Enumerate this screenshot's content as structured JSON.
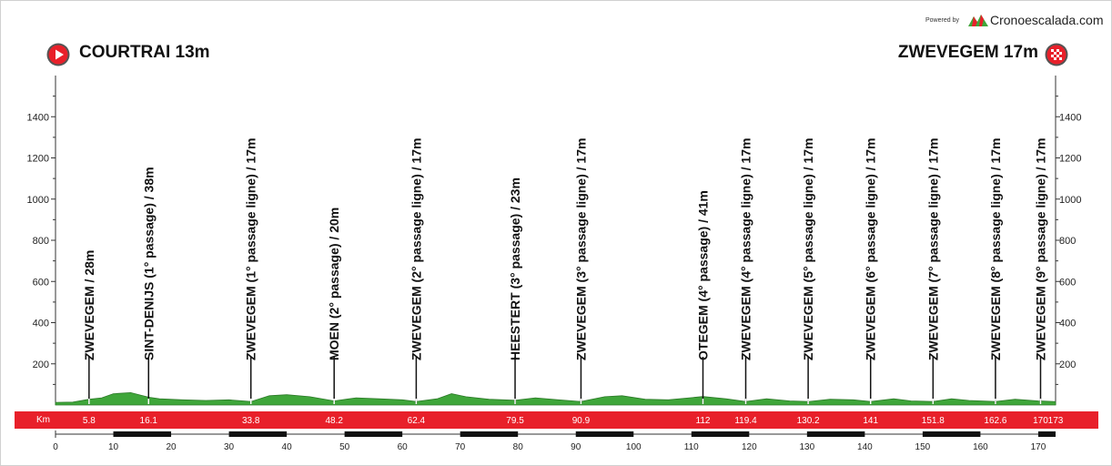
{
  "header": {
    "powered_by": "Powered by",
    "brand": "Cronoescalada.com",
    "start_label": "COURTRAI 13m",
    "end_label": "ZWEVEGEM 17m",
    "start_icon": "play-icon",
    "end_icon": "checkered-flag-icon"
  },
  "km_label": "Km",
  "colors": {
    "terrain": "#3fa63a",
    "km_bar": "#e8202a",
    "axis": "#333333"
  },
  "chart_data": {
    "type": "area",
    "title": "",
    "xlabel": "",
    "ylabel": "",
    "xlim": [
      0,
      173
    ],
    "ylim": [
      0,
      1600
    ],
    "y_ticks": [
      200,
      400,
      600,
      800,
      1000,
      1200,
      1400
    ],
    "x_ticks": [
      0,
      10,
      20,
      30,
      40,
      50,
      60,
      70,
      80,
      90,
      100,
      110,
      120,
      130,
      140,
      150,
      160,
      170
    ],
    "x": [
      0,
      3,
      5.8,
      8,
      10,
      13,
      16.1,
      18,
      22,
      26,
      30,
      33.8,
      37,
      40,
      44,
      48.2,
      52,
      56,
      60,
      62.4,
      66,
      68.5,
      71,
      75,
      79.5,
      83,
      87,
      90.9,
      95,
      98,
      102,
      106,
      112,
      116,
      119.4,
      123,
      127,
      130.2,
      134,
      138,
      141,
      145,
      148,
      151.8,
      155,
      158,
      162.6,
      166,
      170,
      173
    ],
    "y": [
      13,
      14,
      28,
      35,
      55,
      60,
      38,
      30,
      25,
      22,
      25,
      17,
      45,
      50,
      40,
      20,
      35,
      30,
      25,
      17,
      30,
      55,
      40,
      28,
      23,
      35,
      25,
      17,
      40,
      45,
      28,
      25,
      41,
      30,
      17,
      30,
      20,
      17,
      28,
      25,
      17,
      30,
      20,
      17,
      30,
      22,
      17,
      28,
      20,
      17
    ],
    "waypoints": [
      {
        "km": 5.8,
        "km_label": "5.8",
        "label": "ZWEVEGEM / 28m"
      },
      {
        "km": 16.1,
        "km_label": "16.1",
        "label": "SINT-DENIJS (1° passage) / 38m"
      },
      {
        "km": 33.8,
        "km_label": "33.8",
        "label": "ZWEVEGEM (1° passage ligne) / 17m"
      },
      {
        "km": 48.2,
        "km_label": "48.2",
        "label": "MOEN (2° passage) / 20m"
      },
      {
        "km": 62.4,
        "km_label": "62.4",
        "label": "ZWEVEGEM (2° passage ligne) / 17m"
      },
      {
        "km": 79.5,
        "km_label": "79.5",
        "label": "HEESTERT (3° passage) / 23m"
      },
      {
        "km": 90.9,
        "km_label": "90.9",
        "label": "ZWEVEGEM (3° passage ligne) / 17m"
      },
      {
        "km": 112,
        "km_label": "112",
        "label": "OTEGEM (4° passage) / 41m"
      },
      {
        "km": 119.4,
        "km_label": "119.4",
        "label": "ZWEVEGEM (4° passage ligne) / 17m"
      },
      {
        "km": 130.2,
        "km_label": "130.2",
        "label": "ZWEVEGEM (5° passage ligne) / 17m"
      },
      {
        "km": 141,
        "km_label": "141",
        "label": "ZWEVEGEM (6° passage ligne) / 17m"
      },
      {
        "km": 151.8,
        "km_label": "151.8",
        "label": "ZWEVEGEM (7° passage ligne) / 17m"
      },
      {
        "km": 162.6,
        "km_label": "162.6",
        "label": "ZWEVEGEM (8° passage ligne) / 17m"
      },
      {
        "km": 170.4,
        "km_label": "170",
        "label": "ZWEVEGEM (9° passage ligne) / 17m"
      },
      {
        "km": 173,
        "km_label": "173",
        "label": ""
      }
    ]
  }
}
